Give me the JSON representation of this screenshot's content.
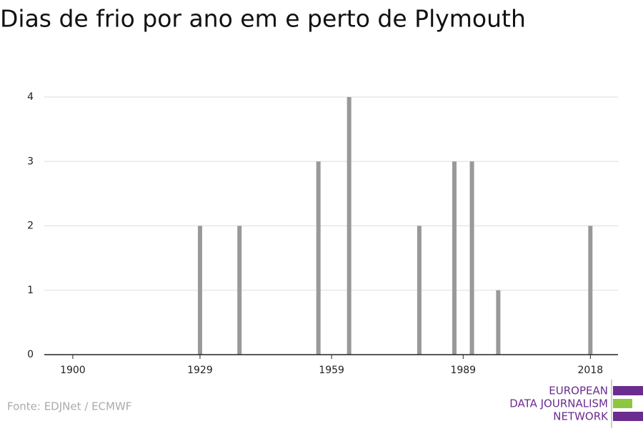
{
  "chart_data": {
    "type": "bar",
    "title": "Dias de frio por ano em e perto de Plymouth",
    "x": [
      1929,
      1938,
      1956,
      1963,
      1979,
      1987,
      1991,
      1997,
      2018
    ],
    "values": [
      2,
      2,
      3,
      4,
      2,
      3,
      3,
      1,
      2
    ],
    "color": "#999999",
    "xlim": [
      1893.5,
      2024.3
    ],
    "xticks": [
      1900,
      1929,
      1959,
      1989,
      2018
    ],
    "ylim": [
      0,
      4
    ],
    "yticks": [
      0,
      1,
      2,
      3,
      4
    ],
    "grid": true
  },
  "footer": {
    "source": "Fonte: EDJNet / ECMWF",
    "logo": [
      "EUROPEAN",
      "DATA JOURNALISM",
      "NETWORK"
    ]
  }
}
